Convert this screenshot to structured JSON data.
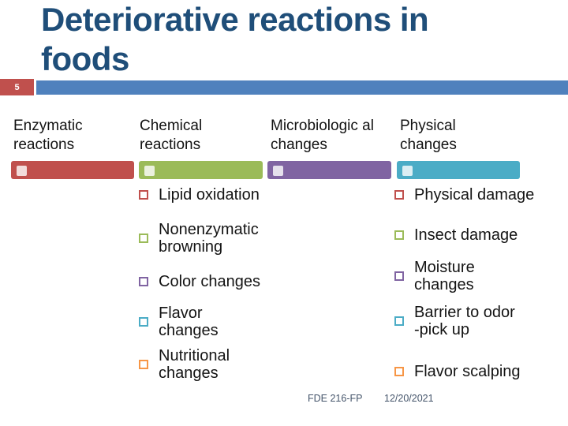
{
  "slide": {
    "number": "5",
    "title_lines": [
      "Deteriorative reactions in",
      "foods"
    ],
    "footer": {
      "course_code": "FDE 216-FP",
      "date": "12/20/2021"
    }
  },
  "colors": {
    "title_text": "#1F4E79",
    "title_rule": "#4F81BD",
    "slide_number_bg": "#C0504D",
    "slide_number_text": "#FFFFFF",
    "body_text": "#141414",
    "footer_text": "#44546A"
  },
  "columns": [
    {
      "title": "Enzymatic reactions",
      "bar_color": "#C0504D",
      "bar_tile_color": "#F2DCDB",
      "items": []
    },
    {
      "title": "Chemical reactions",
      "bar_color": "#9BBB59",
      "bar_tile_color": "#EBF1DE",
      "items": [
        {
          "text": "Lipid oxidation",
          "bullet_color": "#C0504D"
        },
        {
          "text": "Nonenzymatic\nbrowning",
          "bullet_color": "#9BBB59"
        },
        {
          "text": "Color changes",
          "bullet_color": "#8064A2"
        },
        {
          "text": "Flavor\nchanges",
          "bullet_color": "#4BACC6"
        },
        {
          "text": "Nutritional\nchanges",
          "bullet_color": "#F79646"
        }
      ]
    },
    {
      "title": "Microbiologic al changes",
      "bar_color": "#8064A2",
      "bar_tile_color": "#E5E0EC",
      "items": []
    },
    {
      "title": "Physical changes",
      "bar_color": "#4BACC6",
      "bar_tile_color": "#DBEEF3",
      "items": [
        {
          "text": "Physical damage",
          "bullet_color": "#C0504D"
        },
        {
          "text": "Insect damage",
          "bullet_color": "#9BBB59"
        },
        {
          "text": "Moisture\nchanges",
          "bullet_color": "#8064A2"
        },
        {
          "text": "Barrier to odor\n-pick up",
          "bullet_color": "#4BACC6"
        },
        {
          "text": "Flavor scalping",
          "bullet_color": "#F79646"
        }
      ]
    }
  ]
}
